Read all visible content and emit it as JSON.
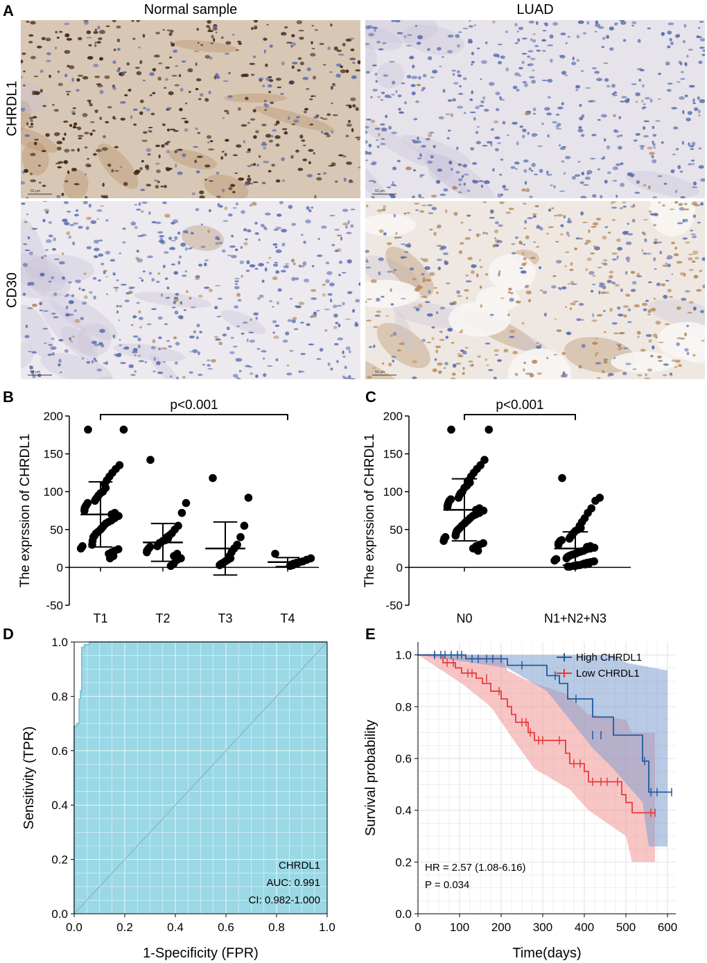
{
  "panel_letters": {
    "a": "A",
    "b": "B",
    "c": "C",
    "d": "D",
    "e": "E"
  },
  "panelA": {
    "col_titles": [
      "Normal sample",
      "LUAD"
    ],
    "row_labels": [
      "CHRDL1",
      "CD30"
    ],
    "scale_bar": "50 μm",
    "colors": {
      "background": "#f1f0f4",
      "nuclei": "#5a6fb0",
      "dab_strong": "#3c2414",
      "dab_light": "#b58a5c"
    }
  },
  "chart_data": [
    {
      "id": "B",
      "type": "scatter",
      "ylabel": "The exprssion of CHRDL1",
      "categories": [
        "T1",
        "T2",
        "T3",
        "T4"
      ],
      "ylim": [
        -50,
        200
      ],
      "yticks": [
        -50,
        0,
        50,
        100,
        150,
        200
      ],
      "annotation": "p<0.001",
      "means": [
        70,
        33,
        25,
        7
      ],
      "sd": [
        43,
        25,
        35,
        6
      ],
      "points": [
        [
          182,
          182,
          135,
          130,
          125,
          120,
          115,
          110,
          105,
          100,
          98,
          95,
          92,
          90,
          88,
          85,
          82,
          80,
          78,
          75,
          72,
          70,
          68,
          65,
          62,
          60,
          58,
          55,
          52,
          50,
          47,
          45,
          42,
          40,
          35,
          30,
          28,
          26,
          25,
          24,
          22,
          20,
          18,
          15,
          12
        ],
        [
          142,
          85,
          72,
          55,
          50,
          45,
          42,
          40,
          38,
          36,
          35,
          33,
          32,
          30,
          28,
          27,
          25,
          23,
          22,
          20,
          18,
          15,
          12,
          10,
          5,
          2
        ],
        [
          118,
          92,
          55,
          40,
          30,
          25,
          20,
          15,
          12,
          10,
          8,
          6,
          5,
          4,
          3
        ],
        [
          18,
          12,
          10,
          8,
          7,
          6,
          5,
          4,
          3,
          2
        ]
      ]
    },
    {
      "id": "C",
      "type": "scatter",
      "ylabel": "The exprssion of CHRDL1",
      "categories": [
        "N0",
        "N1+N2+N3"
      ],
      "ylim": [
        -50,
        200
      ],
      "yticks": [
        -50,
        0,
        50,
        100,
        150,
        200
      ],
      "annotation": "p<0.001",
      "means": [
        76,
        25
      ],
      "sd": [
        41,
        22
      ],
      "points": [
        [
          182,
          182,
          142,
          135,
          130,
          125,
          120,
          115,
          112,
          108,
          105,
          100,
          98,
          95,
          92,
          90,
          88,
          85,
          82,
          80,
          78,
          76,
          75,
          72,
          70,
          68,
          65,
          62,
          60,
          58,
          55,
          52,
          50,
          48,
          45,
          42,
          40,
          38,
          35,
          32,
          30,
          28,
          25,
          22
        ],
        [
          118,
          92,
          88,
          78,
          72,
          65,
          60,
          55,
          52,
          50,
          48,
          45,
          42,
          40,
          38,
          36,
          35,
          33,
          32,
          30,
          28,
          27,
          26,
          25,
          24,
          22,
          21,
          20,
          19,
          18,
          17,
          16,
          15,
          14,
          13,
          12,
          11,
          10,
          9,
          8,
          7,
          6,
          5,
          5,
          4,
          4,
          3,
          3,
          2,
          2,
          1,
          1
        ]
      ]
    },
    {
      "id": "D",
      "type": "line",
      "subtype": "ROC",
      "xlabel": "1-Specificity (FPR)",
      "ylabel": "Sensitivity (TPR)",
      "xlim": [
        0,
        1
      ],
      "ylim": [
        0,
        1
      ],
      "xticks": [
        "0.0",
        "0.2",
        "0.4",
        "0.6",
        "0.8",
        "1.0"
      ],
      "yticks": [
        "0.0",
        "0.2",
        "0.4",
        "0.6",
        "0.8",
        "1.0"
      ],
      "grid": true,
      "curve": [
        [
          0,
          0
        ],
        [
          0,
          0.69
        ],
        [
          0.01,
          0.69
        ],
        [
          0.01,
          0.7
        ],
        [
          0.02,
          0.7
        ],
        [
          0.02,
          0.79
        ],
        [
          0.025,
          0.79
        ],
        [
          0.025,
          0.82
        ],
        [
          0.03,
          0.82
        ],
        [
          0.03,
          0.98
        ],
        [
          0.04,
          0.98
        ],
        [
          0.04,
          0.99
        ],
        [
          0.06,
          0.99
        ],
        [
          0.06,
          1.0
        ],
        [
          1,
          1
        ]
      ],
      "legend_name": "CHRDL1",
      "auc_text": "AUC: 0.991",
      "ci_text": "CI: 0.982-1.000",
      "colors": {
        "fill": "#9ad8e6",
        "line": "#7fc2d4",
        "diag": "#8fb9c8",
        "grid": "#ffffff"
      }
    },
    {
      "id": "E",
      "type": "line",
      "subtype": "Kaplan-Meier",
      "xlabel": "Time(days)",
      "ylabel": "Survival probability",
      "xlim": [
        0,
        620
      ],
      "ylim": [
        0,
        1.05
      ],
      "xticks": [
        0,
        100,
        200,
        300,
        400,
        500,
        600
      ],
      "yticks": [
        "0.0",
        "0.2",
        "0.4",
        "0.6",
        "0.8",
        "1.0"
      ],
      "grid": true,
      "legend_placement": "top-right",
      "series": [
        {
          "name": "High  CHRDL1",
          "color": "#1f5a9e",
          "band_color": "#7f9fd0",
          "steps": [
            [
              0,
              1.0
            ],
            [
              115,
              1.0
            ],
            [
              115,
              0.985
            ],
            [
              215,
              0.985
            ],
            [
              215,
              0.96
            ],
            [
              310,
              0.96
            ],
            [
              310,
              0.92
            ],
            [
              340,
              0.92
            ],
            [
              340,
              0.89
            ],
            [
              360,
              0.89
            ],
            [
              360,
              0.83
            ],
            [
              420,
              0.83
            ],
            [
              420,
              0.76
            ],
            [
              470,
              0.76
            ],
            [
              470,
              0.69
            ],
            [
              540,
              0.69
            ],
            [
              540,
              0.59
            ],
            [
              555,
              0.59
            ],
            [
              555,
              0.47
            ],
            [
              610,
              0.47
            ]
          ],
          "band_upper": [
            [
              0,
              1.0
            ],
            [
              470,
              1.0
            ],
            [
              500,
              0.97
            ],
            [
              600,
              0.94
            ]
          ],
          "band_lower": [
            [
              0,
              1.0
            ],
            [
              215,
              0.95
            ],
            [
              310,
              0.86
            ],
            [
              360,
              0.76
            ],
            [
              420,
              0.64
            ],
            [
              470,
              0.56
            ],
            [
              540,
              0.43
            ],
            [
              555,
              0.26
            ],
            [
              600,
              0.26
            ]
          ],
          "censor": [
            [
              40,
              1.0
            ],
            [
              55,
              1.0
            ],
            [
              65,
              1.0
            ],
            [
              80,
              1.0
            ],
            [
              95,
              1.0
            ],
            [
              105,
              1.0
            ],
            [
              130,
              0.985
            ],
            [
              145,
              0.985
            ],
            [
              165,
              0.985
            ],
            [
              180,
              0.985
            ],
            [
              200,
              0.985
            ],
            [
              250,
              0.96
            ],
            [
              330,
              0.92
            ],
            [
              380,
              0.83
            ],
            [
              420,
              0.69
            ],
            [
              440,
              0.69
            ],
            [
              545,
              0.59
            ],
            [
              560,
              0.47
            ],
            [
              575,
              0.47
            ],
            [
              610,
              0.47
            ]
          ]
        },
        {
          "name": "Low CHRDL1",
          "color": "#e8383d",
          "band_color": "#f29595",
          "steps": [
            [
              0,
              1.0
            ],
            [
              60,
              1.0
            ],
            [
              60,
              0.97
            ],
            [
              90,
              0.97
            ],
            [
              90,
              0.95
            ],
            [
              105,
              0.95
            ],
            [
              105,
              0.93
            ],
            [
              140,
              0.93
            ],
            [
              140,
              0.91
            ],
            [
              155,
              0.91
            ],
            [
              155,
              0.89
            ],
            [
              175,
              0.89
            ],
            [
              175,
              0.86
            ],
            [
              200,
              0.86
            ],
            [
              200,
              0.83
            ],
            [
              215,
              0.83
            ],
            [
              215,
              0.8
            ],
            [
              225,
              0.8
            ],
            [
              225,
              0.77
            ],
            [
              235,
              0.77
            ],
            [
              235,
              0.74
            ],
            [
              265,
              0.74
            ],
            [
              265,
              0.7
            ],
            [
              280,
              0.7
            ],
            [
              280,
              0.67
            ],
            [
              355,
              0.67
            ],
            [
              355,
              0.62
            ],
            [
              365,
              0.62
            ],
            [
              365,
              0.58
            ],
            [
              400,
              0.58
            ],
            [
              400,
              0.55
            ],
            [
              410,
              0.55
            ],
            [
              410,
              0.51
            ],
            [
              490,
              0.51
            ],
            [
              490,
              0.46
            ],
            [
              500,
              0.46
            ],
            [
              500,
              0.43
            ],
            [
              515,
              0.43
            ],
            [
              515,
              0.39
            ],
            [
              570,
              0.39
            ]
          ],
          "band_upper": [
            [
              0,
              1.0
            ],
            [
              200,
              1.0
            ],
            [
              215,
              0.94
            ],
            [
              265,
              0.9
            ],
            [
              355,
              0.85
            ],
            [
              410,
              0.77
            ],
            [
              500,
              0.75
            ],
            [
              515,
              0.7
            ],
            [
              570,
              0.7
            ]
          ],
          "band_lower": [
            [
              0,
              1.0
            ],
            [
              105,
              0.89
            ],
            [
              175,
              0.8
            ],
            [
              235,
              0.66
            ],
            [
              280,
              0.56
            ],
            [
              365,
              0.48
            ],
            [
              410,
              0.4
            ],
            [
              500,
              0.3
            ],
            [
              515,
              0.2
            ],
            [
              570,
              0.2
            ]
          ],
          "censor": [
            [
              40,
              1.0
            ],
            [
              70,
              0.97
            ],
            [
              85,
              0.97
            ],
            [
              120,
              0.93
            ],
            [
              130,
              0.93
            ],
            [
              165,
              0.91
            ],
            [
              195,
              0.86
            ],
            [
              250,
              0.74
            ],
            [
              260,
              0.74
            ],
            [
              270,
              0.7
            ],
            [
              290,
              0.67
            ],
            [
              300,
              0.67
            ],
            [
              340,
              0.67
            ],
            [
              375,
              0.58
            ],
            [
              390,
              0.58
            ],
            [
              420,
              0.51
            ],
            [
              440,
              0.51
            ],
            [
              455,
              0.51
            ],
            [
              480,
              0.51
            ],
            [
              560,
              0.39
            ],
            [
              570,
              0.39
            ]
          ]
        }
      ],
      "hr_text": "HR = 2.57 (1.08-6.16)",
      "p_text": "P = 0.034"
    }
  ]
}
